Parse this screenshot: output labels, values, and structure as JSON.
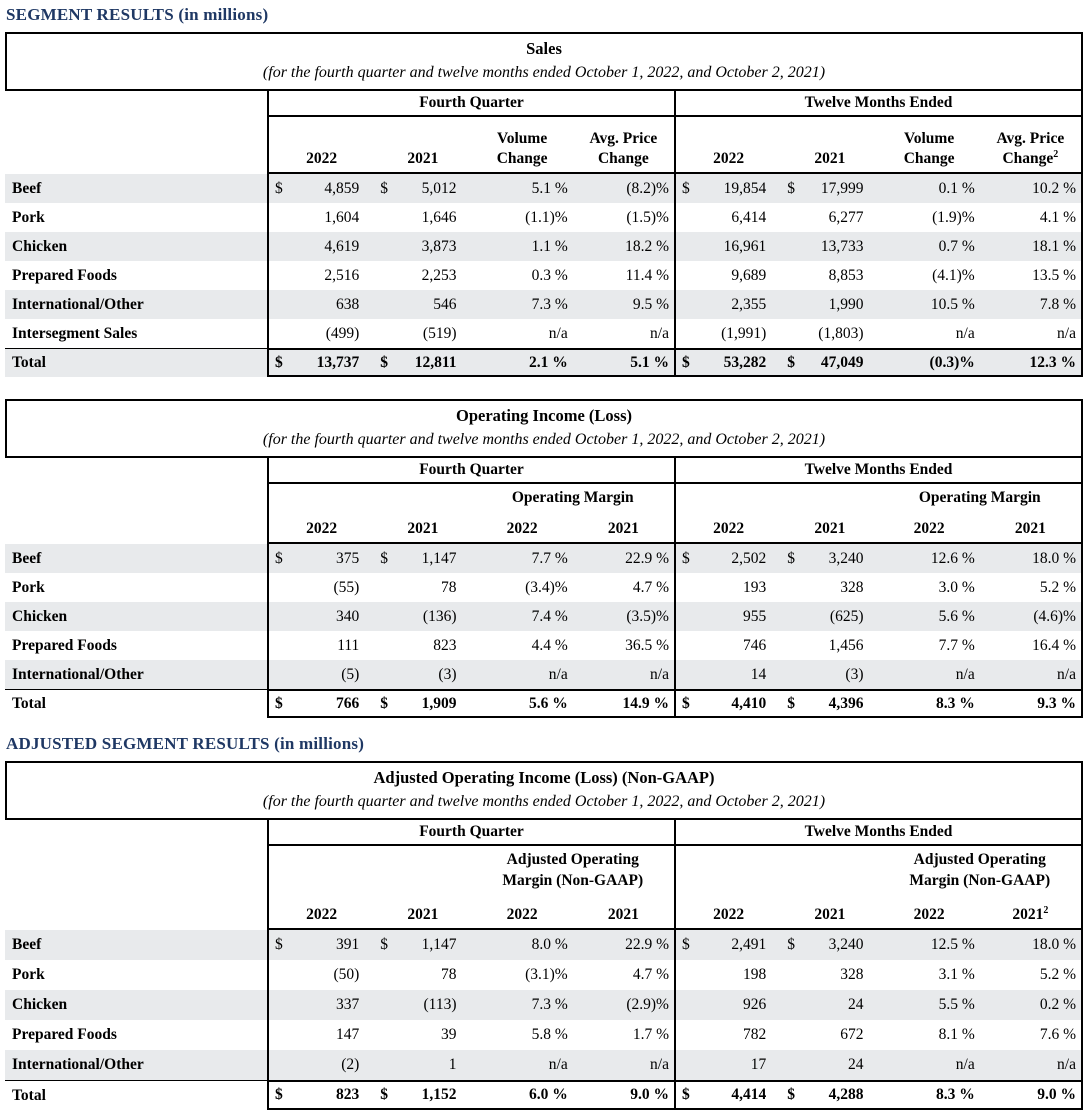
{
  "headings": {
    "segment_results": "SEGMENT RESULTS (in millions)",
    "adjusted_segment_results": "ADJUSTED SEGMENT RESULTS (in millions)"
  },
  "colors": {
    "heading_navy": "#1f3864",
    "row_shade": "#e8eaec",
    "border": "#000000",
    "text": "#000000",
    "background": "#ffffff"
  },
  "tables": [
    {
      "title": "Sales",
      "subtitle": "(for the fourth quarter and twelve months ended October 1, 2022, and October 2, 2021)",
      "groups": [
        "Fourth Quarter",
        "Twelve Months Ended"
      ],
      "fq": {
        "span": [],
        "cols": [
          {
            "top": "",
            "bot": "2022",
            "sup": ""
          },
          {
            "top": "",
            "bot": "2021",
            "sup": ""
          },
          {
            "top": "Volume",
            "bot": "Change",
            "sup": ""
          },
          {
            "top": "Avg. Price",
            "bot": "Change",
            "sup": ""
          }
        ]
      },
      "tm": {
        "span": [],
        "cols": [
          {
            "top": "",
            "bot": "2022",
            "sup": ""
          },
          {
            "top": "",
            "bot": "2021",
            "sup": ""
          },
          {
            "top": "Volume",
            "bot": "Change",
            "sup": ""
          },
          {
            "top": "Avg. Price",
            "bot": "Change",
            "sup": "2"
          }
        ]
      },
      "rows": [
        {
          "label": "Beef",
          "shaded": true,
          "total": false,
          "fq": [
            [
              "$",
              "4,859"
            ],
            [
              "$",
              "5,012"
            ],
            [
              "",
              "5.1 %"
            ],
            [
              "",
              "(8.2)%"
            ]
          ],
          "tm": [
            [
              "$",
              "19,854"
            ],
            [
              "$",
              "17,999"
            ],
            [
              "",
              "0.1 %"
            ],
            [
              "",
              "10.2 %"
            ]
          ]
        },
        {
          "label": "Pork",
          "shaded": false,
          "total": false,
          "fq": [
            [
              "",
              "1,604"
            ],
            [
              "",
              "1,646"
            ],
            [
              "",
              "(1.1)%"
            ],
            [
              "",
              "(1.5)%"
            ]
          ],
          "tm": [
            [
              "",
              "6,414"
            ],
            [
              "",
              "6,277"
            ],
            [
              "",
              "(1.9)%"
            ],
            [
              "",
              "4.1 %"
            ]
          ]
        },
        {
          "label": "Chicken",
          "shaded": true,
          "total": false,
          "fq": [
            [
              "",
              "4,619"
            ],
            [
              "",
              "3,873"
            ],
            [
              "",
              "1.1 %"
            ],
            [
              "",
              "18.2 %"
            ]
          ],
          "tm": [
            [
              "",
              "16,961"
            ],
            [
              "",
              "13,733"
            ],
            [
              "",
              "0.7 %"
            ],
            [
              "",
              "18.1 %"
            ]
          ]
        },
        {
          "label": "Prepared Foods",
          "shaded": false,
          "total": false,
          "fq": [
            [
              "",
              "2,516"
            ],
            [
              "",
              "2,253"
            ],
            [
              "",
              "0.3 %"
            ],
            [
              "",
              "11.4 %"
            ]
          ],
          "tm": [
            [
              "",
              "9,689"
            ],
            [
              "",
              "8,853"
            ],
            [
              "",
              "(4.1)%"
            ],
            [
              "",
              "13.5 %"
            ]
          ]
        },
        {
          "label": "International/Other",
          "shaded": true,
          "total": false,
          "fq": [
            [
              "",
              "638"
            ],
            [
              "",
              "546"
            ],
            [
              "",
              "7.3 %"
            ],
            [
              "",
              "9.5 %"
            ]
          ],
          "tm": [
            [
              "",
              "2,355"
            ],
            [
              "",
              "1,990"
            ],
            [
              "",
              "10.5 %"
            ],
            [
              "",
              "7.8 %"
            ]
          ]
        },
        {
          "label": "Intersegment Sales",
          "shaded": false,
          "total": false,
          "fq": [
            [
              "",
              "(499)"
            ],
            [
              "",
              "(519)"
            ],
            [
              "",
              "n/a"
            ],
            [
              "",
              "n/a"
            ]
          ],
          "tm": [
            [
              "",
              "(1,991)"
            ],
            [
              "",
              "(1,803)"
            ],
            [
              "",
              "n/a"
            ],
            [
              "",
              "n/a"
            ]
          ]
        },
        {
          "label": "Total",
          "shaded": true,
          "total": true,
          "fq": [
            [
              "$",
              "13,737"
            ],
            [
              "$",
              "12,811"
            ],
            [
              "",
              "2.1 %"
            ],
            [
              "",
              "5.1 %"
            ]
          ],
          "tm": [
            [
              "$",
              "53,282"
            ],
            [
              "$",
              "47,049"
            ],
            [
              "",
              "(0.3)%"
            ],
            [
              "",
              "12.3 %"
            ]
          ]
        }
      ]
    },
    {
      "title": "Operating Income (Loss)",
      "subtitle": "(for the fourth quarter and twelve months ended October 1, 2022, and October 2, 2021)",
      "groups": [
        "Fourth Quarter",
        "Twelve Months Ended"
      ],
      "fq": {
        "span": [
          "Operating Margin"
        ],
        "cols": [
          {
            "top": "",
            "bot": "2022",
            "sup": ""
          },
          {
            "top": "",
            "bot": "2021",
            "sup": ""
          },
          {
            "top": "",
            "bot": "2022",
            "sup": ""
          },
          {
            "top": "",
            "bot": "2021",
            "sup": ""
          }
        ]
      },
      "tm": {
        "span": [
          "Operating Margin"
        ],
        "cols": [
          {
            "top": "",
            "bot": "2022",
            "sup": ""
          },
          {
            "top": "",
            "bot": "2021",
            "sup": ""
          },
          {
            "top": "",
            "bot": "2022",
            "sup": ""
          },
          {
            "top": "",
            "bot": "2021",
            "sup": ""
          }
        ]
      },
      "rows": [
        {
          "label": "Beef",
          "shaded": true,
          "total": false,
          "fq": [
            [
              "$",
              "375"
            ],
            [
              "$",
              "1,147"
            ],
            [
              "",
              "7.7 %"
            ],
            [
              "",
              "22.9 %"
            ]
          ],
          "tm": [
            [
              "$",
              "2,502"
            ],
            [
              "$",
              "3,240"
            ],
            [
              "",
              "12.6 %"
            ],
            [
              "",
              "18.0 %"
            ]
          ]
        },
        {
          "label": "Pork",
          "shaded": false,
          "total": false,
          "fq": [
            [
              "",
              "(55)"
            ],
            [
              "",
              "78"
            ],
            [
              "",
              "(3.4)%"
            ],
            [
              "",
              "4.7 %"
            ]
          ],
          "tm": [
            [
              "",
              "193"
            ],
            [
              "",
              "328"
            ],
            [
              "",
              "3.0 %"
            ],
            [
              "",
              "5.2 %"
            ]
          ]
        },
        {
          "label": "Chicken",
          "shaded": true,
          "total": false,
          "fq": [
            [
              "",
              "340"
            ],
            [
              "",
              "(136)"
            ],
            [
              "",
              "7.4 %"
            ],
            [
              "",
              "(3.5)%"
            ]
          ],
          "tm": [
            [
              "",
              "955"
            ],
            [
              "",
              "(625)"
            ],
            [
              "",
              "5.6 %"
            ],
            [
              "",
              "(4.6)%"
            ]
          ]
        },
        {
          "label": "Prepared Foods",
          "shaded": false,
          "total": false,
          "fq": [
            [
              "",
              "111"
            ],
            [
              "",
              "823"
            ],
            [
              "",
              "4.4 %"
            ],
            [
              "",
              "36.5 %"
            ]
          ],
          "tm": [
            [
              "",
              "746"
            ],
            [
              "",
              "1,456"
            ],
            [
              "",
              "7.7 %"
            ],
            [
              "",
              "16.4 %"
            ]
          ]
        },
        {
          "label": "International/Other",
          "shaded": true,
          "total": false,
          "fq": [
            [
              "",
              "(5)"
            ],
            [
              "",
              "(3)"
            ],
            [
              "",
              "n/a"
            ],
            [
              "",
              "n/a"
            ]
          ],
          "tm": [
            [
              "",
              "14"
            ],
            [
              "",
              "(3)"
            ],
            [
              "",
              "n/a"
            ],
            [
              "",
              "n/a"
            ]
          ]
        },
        {
          "label": "Total",
          "shaded": false,
          "total": true,
          "fq": [
            [
              "$",
              "766"
            ],
            [
              "$",
              "1,909"
            ],
            [
              "",
              "5.6 %"
            ],
            [
              "",
              "14.9 %"
            ]
          ],
          "tm": [
            [
              "$",
              "4,410"
            ],
            [
              "$",
              "4,396"
            ],
            [
              "",
              "8.3 %"
            ],
            [
              "",
              "9.3 %"
            ]
          ]
        }
      ]
    },
    {
      "title": "Adjusted Operating Income (Loss) (Non-GAAP)",
      "subtitle": "(for the fourth quarter and twelve months ended October 1, 2022, and October 2, 2021)",
      "groups": [
        "Fourth Quarter",
        "Twelve Months Ended"
      ],
      "fq": {
        "span": [
          "Adjusted Operating",
          "Margin (Non-GAAP)"
        ],
        "cols": [
          {
            "top": "",
            "bot": "2022",
            "sup": ""
          },
          {
            "top": "",
            "bot": "2021",
            "sup": ""
          },
          {
            "top": "",
            "bot": "2022",
            "sup": ""
          },
          {
            "top": "",
            "bot": "2021",
            "sup": ""
          }
        ]
      },
      "tm": {
        "span": [
          "Adjusted Operating",
          "Margin (Non-GAAP)"
        ],
        "cols": [
          {
            "top": "",
            "bot": "2022",
            "sup": ""
          },
          {
            "top": "",
            "bot": "2021",
            "sup": ""
          },
          {
            "top": "",
            "bot": "2022",
            "sup": ""
          },
          {
            "top": "",
            "bot": "2021",
            "sup": "2"
          }
        ]
      },
      "rows": [
        {
          "label": "Beef",
          "shaded": true,
          "total": false,
          "fq": [
            [
              "$",
              "391"
            ],
            [
              "$",
              "1,147"
            ],
            [
              "",
              "8.0 %"
            ],
            [
              "",
              "22.9 %"
            ]
          ],
          "tm": [
            [
              "$",
              "2,491"
            ],
            [
              "$",
              "3,240"
            ],
            [
              "",
              "12.5 %"
            ],
            [
              "",
              "18.0 %"
            ]
          ]
        },
        {
          "label": "Pork",
          "shaded": false,
          "total": false,
          "fq": [
            [
              "",
              "(50)"
            ],
            [
              "",
              "78"
            ],
            [
              "",
              "(3.1)%"
            ],
            [
              "",
              "4.7 %"
            ]
          ],
          "tm": [
            [
              "",
              "198"
            ],
            [
              "",
              "328"
            ],
            [
              "",
              "3.1 %"
            ],
            [
              "",
              "5.2 %"
            ]
          ]
        },
        {
          "label": "Chicken",
          "shaded": true,
          "total": false,
          "fq": [
            [
              "",
              "337"
            ],
            [
              "",
              "(113)"
            ],
            [
              "",
              "7.3 %"
            ],
            [
              "",
              "(2.9)%"
            ]
          ],
          "tm": [
            [
              "",
              "926"
            ],
            [
              "",
              "24"
            ],
            [
              "",
              "5.5 %"
            ],
            [
              "",
              "0.2 %"
            ]
          ]
        },
        {
          "label": "Prepared Foods",
          "shaded": false,
          "total": false,
          "fq": [
            [
              "",
              "147"
            ],
            [
              "",
              "39"
            ],
            [
              "",
              "5.8 %"
            ],
            [
              "",
              "1.7 %"
            ]
          ],
          "tm": [
            [
              "",
              "782"
            ],
            [
              "",
              "672"
            ],
            [
              "",
              "8.1 %"
            ],
            [
              "",
              "7.6 %"
            ]
          ]
        },
        {
          "label": "International/Other",
          "shaded": true,
          "total": false,
          "fq": [
            [
              "",
              "(2)"
            ],
            [
              "",
              "1"
            ],
            [
              "",
              "n/a"
            ],
            [
              "",
              "n/a"
            ]
          ],
          "tm": [
            [
              "",
              "17"
            ],
            [
              "",
              "24"
            ],
            [
              "",
              "n/a"
            ],
            [
              "",
              "n/a"
            ]
          ]
        },
        {
          "label": "Total",
          "shaded": false,
          "total": true,
          "fq": [
            [
              "$",
              "823"
            ],
            [
              "$",
              "1,152"
            ],
            [
              "",
              "6.0 %"
            ],
            [
              "",
              "9.0 %"
            ]
          ],
          "tm": [
            [
              "$",
              "4,414"
            ],
            [
              "$",
              "4,288"
            ],
            [
              "",
              "8.3 %"
            ],
            [
              "",
              "9.0 %"
            ]
          ]
        }
      ]
    }
  ]
}
